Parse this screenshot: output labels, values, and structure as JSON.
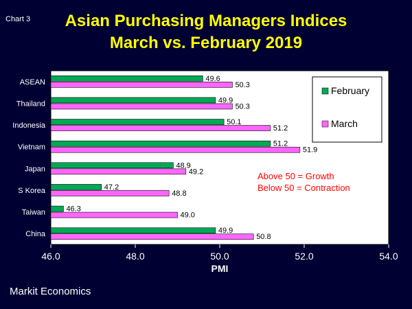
{
  "header": {
    "chart_label": "Chart 3",
    "title_line1": "Asian Purchasing Managers Indices",
    "title_line2": "March vs. February 2019"
  },
  "footer": {
    "source": "Markit Economics"
  },
  "annotations": {
    "line1": "Above 50 = Growth",
    "line2": "Below 50 = Contraction"
  },
  "colors": {
    "february": "#00aa55",
    "march": "#ff66ff",
    "title": "#ffff00",
    "note": "#ff0000",
    "background": "#000033"
  },
  "chart_data": {
    "type": "bar",
    "orientation": "horizontal",
    "title": "Asian Purchasing Managers Indices March vs. February 2019",
    "xlabel": "PMI",
    "ylabel": "",
    "xlim": [
      46.0,
      54.0
    ],
    "xticks": [
      "46.0",
      "48.0",
      "50.0",
      "52.0",
      "54.0"
    ],
    "grid": false,
    "legend_position": "top-right",
    "categories": [
      "ASEAN",
      "Thailand",
      "Indonesia",
      "Vietnam",
      "Japan",
      "S Korea",
      "Taiwan",
      "China"
    ],
    "series": [
      {
        "name": "February",
        "values": [
          49.6,
          49.9,
          50.1,
          51.2,
          48.9,
          47.2,
          46.3,
          49.9
        ]
      },
      {
        "name": "March",
        "values": [
          50.3,
          50.3,
          51.2,
          51.9,
          49.2,
          48.8,
          49.0,
          50.8
        ]
      }
    ]
  }
}
